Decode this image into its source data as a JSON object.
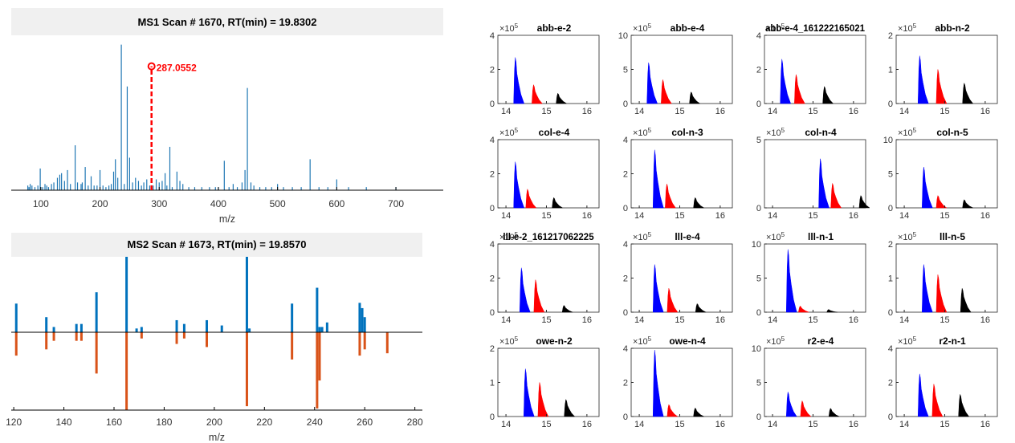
{
  "chart_data": [
    {
      "type": "bar",
      "title": "MS1 Scan # 1670,   RT(min) = 19.8302",
      "xlabel": "m/z",
      "xlim": [
        50,
        780
      ],
      "ylim": [
        0,
        1
      ],
      "xticks": [
        100,
        200,
        300,
        400,
        500,
        600,
        700
      ],
      "annotation": {
        "label": "287.0552",
        "x": 287.0552,
        "y": 0.8,
        "color": "#ff0000"
      },
      "x": [
        78,
        80,
        82,
        85,
        90,
        95,
        99,
        103,
        107,
        110,
        113,
        118,
        122,
        128,
        132,
        135,
        140,
        145,
        150,
        158,
        162,
        168,
        170,
        175,
        180,
        185,
        190,
        195,
        200,
        205,
        210,
        215,
        219,
        223,
        226,
        230,
        236,
        241,
        246,
        250,
        255,
        260,
        265,
        270,
        274,
        279,
        284,
        290,
        295,
        300,
        305,
        310,
        313,
        318,
        322,
        330,
        335,
        340,
        350,
        360,
        372,
        385,
        395,
        400,
        410,
        418,
        425,
        432,
        440,
        445,
        449,
        455,
        460,
        470,
        480,
        490,
        500,
        510,
        525,
        540,
        555,
        570,
        585,
        600,
        620,
        650,
        700
      ],
      "y": [
        0.03,
        0.02,
        0.04,
        0.03,
        0.02,
        0.03,
        0.14,
        0.02,
        0.04,
        0.03,
        0.02,
        0.04,
        0.05,
        0.08,
        0.1,
        0.11,
        0.06,
        0.13,
        0.04,
        0.29,
        0.05,
        0.04,
        0.05,
        0.15,
        0.03,
        0.09,
        0.03,
        0.03,
        0.13,
        0.03,
        0.02,
        0.03,
        0.04,
        0.12,
        0.2,
        0.08,
        0.94,
        0.04,
        0.67,
        0.21,
        0.05,
        0.08,
        0.06,
        0.03,
        0.05,
        0.07,
        0.03,
        0.03,
        0.07,
        0.05,
        0.06,
        0.11,
        0.03,
        0.28,
        0.02,
        0.12,
        0.06,
        0.04,
        0.02,
        0.02,
        0.02,
        0.02,
        0.02,
        0.02,
        0.19,
        0.02,
        0.04,
        0.02,
        0.05,
        0.13,
        0.66,
        0.05,
        0.03,
        0.02,
        0.02,
        0.02,
        0.04,
        0.02,
        0.02,
        0.02,
        0.2,
        0.02,
        0.02,
        0.07,
        0.02,
        0.02,
        0.02
      ]
    },
    {
      "type": "bar",
      "title": "MS2 Scan # 1673,   RT(min) = 19.8570",
      "xlabel": "m/z",
      "xlim": [
        119,
        283
      ],
      "ylim": [
        -1,
        1
      ],
      "xticks": [
        120,
        140,
        160,
        180,
        200,
        220,
        240,
        260,
        280
      ],
      "series": [
        {
          "x": [
            121,
            133,
            136,
            145,
            147,
            153,
            165,
            169,
            171,
            185,
            188,
            197,
            203,
            213,
            214,
            231,
            241,
            242,
            243,
            245,
            258,
            259,
            260
          ],
          "y": [
            0.38,
            0.2,
            0.07,
            0.11,
            0.11,
            0.53,
            1.0,
            0.05,
            0.07,
            0.16,
            0.11,
            0.16,
            0.09,
            1.0,
            0.05,
            0.38,
            0.59,
            0.07,
            0.07,
            0.13,
            0.39,
            0.32,
            0.2
          ]
        },
        {
          "x": [
            121,
            133,
            136,
            145,
            147,
            153,
            165,
            171,
            185,
            188,
            197,
            213,
            231,
            241,
            242,
            258,
            260,
            269
          ],
          "y": [
            -0.3,
            -0.22,
            -0.11,
            -0.11,
            -0.11,
            -0.53,
            -1.0,
            -0.08,
            -0.15,
            -0.08,
            -0.19,
            -0.95,
            -0.35,
            -0.98,
            -0.62,
            -0.3,
            -0.22,
            -0.27
          ]
        }
      ]
    },
    {
      "type": "area",
      "small_multiples": true,
      "layout": "4x4",
      "xlim": [
        13.8,
        16.3
      ],
      "xticks": [
        14,
        15,
        16
      ],
      "exponent_label": "×10",
      "exponent_power": "5",
      "panels": [
        {
          "title": "abb-e-2",
          "ymax": 4,
          "yticks": [
            0,
            2,
            4
          ],
          "peaks": [
            {
              "color": "#0000ff",
              "x": 14.25,
              "h": 2.7
            },
            {
              "color": "#ff0000",
              "x": 14.7,
              "h": 1.1
            },
            {
              "color": "#000000",
              "x": 15.3,
              "h": 0.6
            }
          ]
        },
        {
          "title": "abb-e-4",
          "ymax": 10,
          "yticks": [
            0,
            5,
            10
          ],
          "peaks": [
            {
              "color": "#0000ff",
              "x": 14.25,
              "h": 6.0
            },
            {
              "color": "#ff0000",
              "x": 14.6,
              "h": 3.5
            },
            {
              "color": "#000000",
              "x": 15.3,
              "h": 1.7
            }
          ]
        },
        {
          "title": "abb-e-4_161222165021",
          "ymax": 4,
          "yticks": [
            0,
            2,
            4
          ],
          "peaks": [
            {
              "color": "#0000ff",
              "x": 14.25,
              "h": 2.6
            },
            {
              "color": "#ff0000",
              "x": 14.6,
              "h": 1.7
            },
            {
              "color": "#000000",
              "x": 15.3,
              "h": 1.0
            }
          ]
        },
        {
          "title": "abb-n-2",
          "ymax": 2,
          "yticks": [
            0,
            1,
            2
          ],
          "peaks": [
            {
              "color": "#0000ff",
              "x": 14.4,
              "h": 1.4
            },
            {
              "color": "#ff0000",
              "x": 14.85,
              "h": 1.0
            },
            {
              "color": "#000000",
              "x": 15.5,
              "h": 0.6
            }
          ]
        },
        {
          "title": "col-e-4",
          "ymax": 4,
          "yticks": [
            0,
            2,
            4
          ],
          "peaks": [
            {
              "color": "#0000ff",
              "x": 14.25,
              "h": 2.7
            },
            {
              "color": "#ff0000",
              "x": 14.55,
              "h": 1.1
            },
            {
              "color": "#000000",
              "x": 15.2,
              "h": 0.6
            }
          ]
        },
        {
          "title": "col-n-3",
          "ymax": 4,
          "yticks": [
            0,
            2,
            4
          ],
          "peaks": [
            {
              "color": "#0000ff",
              "x": 14.4,
              "h": 3.4
            },
            {
              "color": "#ff0000",
              "x": 14.7,
              "h": 1.4
            },
            {
              "color": "#000000",
              "x": 15.4,
              "h": 0.6
            }
          ]
        },
        {
          "title": "col-n-4",
          "ymax": 5,
          "yticks": [
            0,
            5
          ],
          "peaks": [
            {
              "color": "#0000ff",
              "x": 15.2,
              "h": 3.6
            },
            {
              "color": "#ff0000",
              "x": 15.5,
              "h": 1.8
            },
            {
              "color": "#000000",
              "x": 16.2,
              "h": 0.9
            }
          ]
        },
        {
          "title": "col-n-5",
          "ymax": 10,
          "yticks": [
            0,
            5,
            10
          ],
          "peaks": [
            {
              "color": "#0000ff",
              "x": 14.5,
              "h": 6.0
            },
            {
              "color": "#ff0000",
              "x": 14.85,
              "h": 1.8
            },
            {
              "color": "#000000",
              "x": 15.5,
              "h": 1.2
            }
          ]
        },
        {
          "title": "lll-e-2_161217062225",
          "ymax": 4,
          "yticks": [
            0,
            2,
            4
          ],
          "peaks": [
            {
              "color": "#0000ff",
              "x": 14.4,
              "h": 2.6
            },
            {
              "color": "#ff0000",
              "x": 14.75,
              "h": 1.9
            },
            {
              "color": "#000000",
              "x": 15.45,
              "h": 0.4
            }
          ]
        },
        {
          "title": "lll-e-4",
          "ymax": 4,
          "yticks": [
            0,
            2,
            4
          ],
          "peaks": [
            {
              "color": "#0000ff",
              "x": 14.4,
              "h": 2.8
            },
            {
              "color": "#ff0000",
              "x": 14.75,
              "h": 1.4
            },
            {
              "color": "#000000",
              "x": 15.45,
              "h": 0.5
            }
          ]
        },
        {
          "title": "lll-n-1",
          "ymax": 10,
          "yticks": [
            0,
            5,
            10
          ],
          "peaks": [
            {
              "color": "#0000ff",
              "x": 14.4,
              "h": 9.2
            },
            {
              "color": "#ff0000",
              "x": 14.7,
              "h": 0.9
            },
            {
              "color": "#000000",
              "x": 15.4,
              "h": 0.4
            }
          ]
        },
        {
          "title": "lll-n-5",
          "ymax": 2,
          "yticks": [
            0,
            1,
            2
          ],
          "peaks": [
            {
              "color": "#0000ff",
              "x": 14.5,
              "h": 1.4
            },
            {
              "color": "#ff0000",
              "x": 14.85,
              "h": 1.1
            },
            {
              "color": "#000000",
              "x": 15.45,
              "h": 0.7
            }
          ]
        },
        {
          "title": "owe-n-2",
          "ymax": 2,
          "yticks": [
            0,
            1,
            2
          ],
          "peaks": [
            {
              "color": "#0000ff",
              "x": 14.5,
              "h": 1.4
            },
            {
              "color": "#ff0000",
              "x": 14.85,
              "h": 1.0
            },
            {
              "color": "#000000",
              "x": 15.5,
              "h": 0.5
            }
          ]
        },
        {
          "title": "owe-n-4",
          "ymax": 4,
          "yticks": [
            0,
            2,
            4
          ],
          "peaks": [
            {
              "color": "#0000ff",
              "x": 14.4,
              "h": 3.9
            },
            {
              "color": "#ff0000",
              "x": 14.75,
              "h": 0.7
            },
            {
              "color": "#000000",
              "x": 15.4,
              "h": 0.5
            }
          ]
        },
        {
          "title": "r2-e-4",
          "ymax": 10,
          "yticks": [
            0,
            5,
            10
          ],
          "peaks": [
            {
              "color": "#0000ff",
              "x": 14.4,
              "h": 3.6
            },
            {
              "color": "#ff0000",
              "x": 14.75,
              "h": 2.3
            },
            {
              "color": "#000000",
              "x": 15.45,
              "h": 1.2
            }
          ]
        },
        {
          "title": "r2-n-1",
          "ymax": 4,
          "yticks": [
            0,
            2,
            4
          ],
          "peaks": [
            {
              "color": "#0000ff",
              "x": 14.4,
              "h": 2.5
            },
            {
              "color": "#ff0000",
              "x": 14.75,
              "h": 1.9
            },
            {
              "color": "#000000",
              "x": 15.4,
              "h": 1.3
            }
          ]
        }
      ]
    }
  ],
  "colors": {
    "ms1_bar": "#1f77b4",
    "ms2_up": "#0072bd",
    "ms2_down": "#d95319",
    "annotation": "#ff0000",
    "header_bg": "#f0f0f0"
  }
}
